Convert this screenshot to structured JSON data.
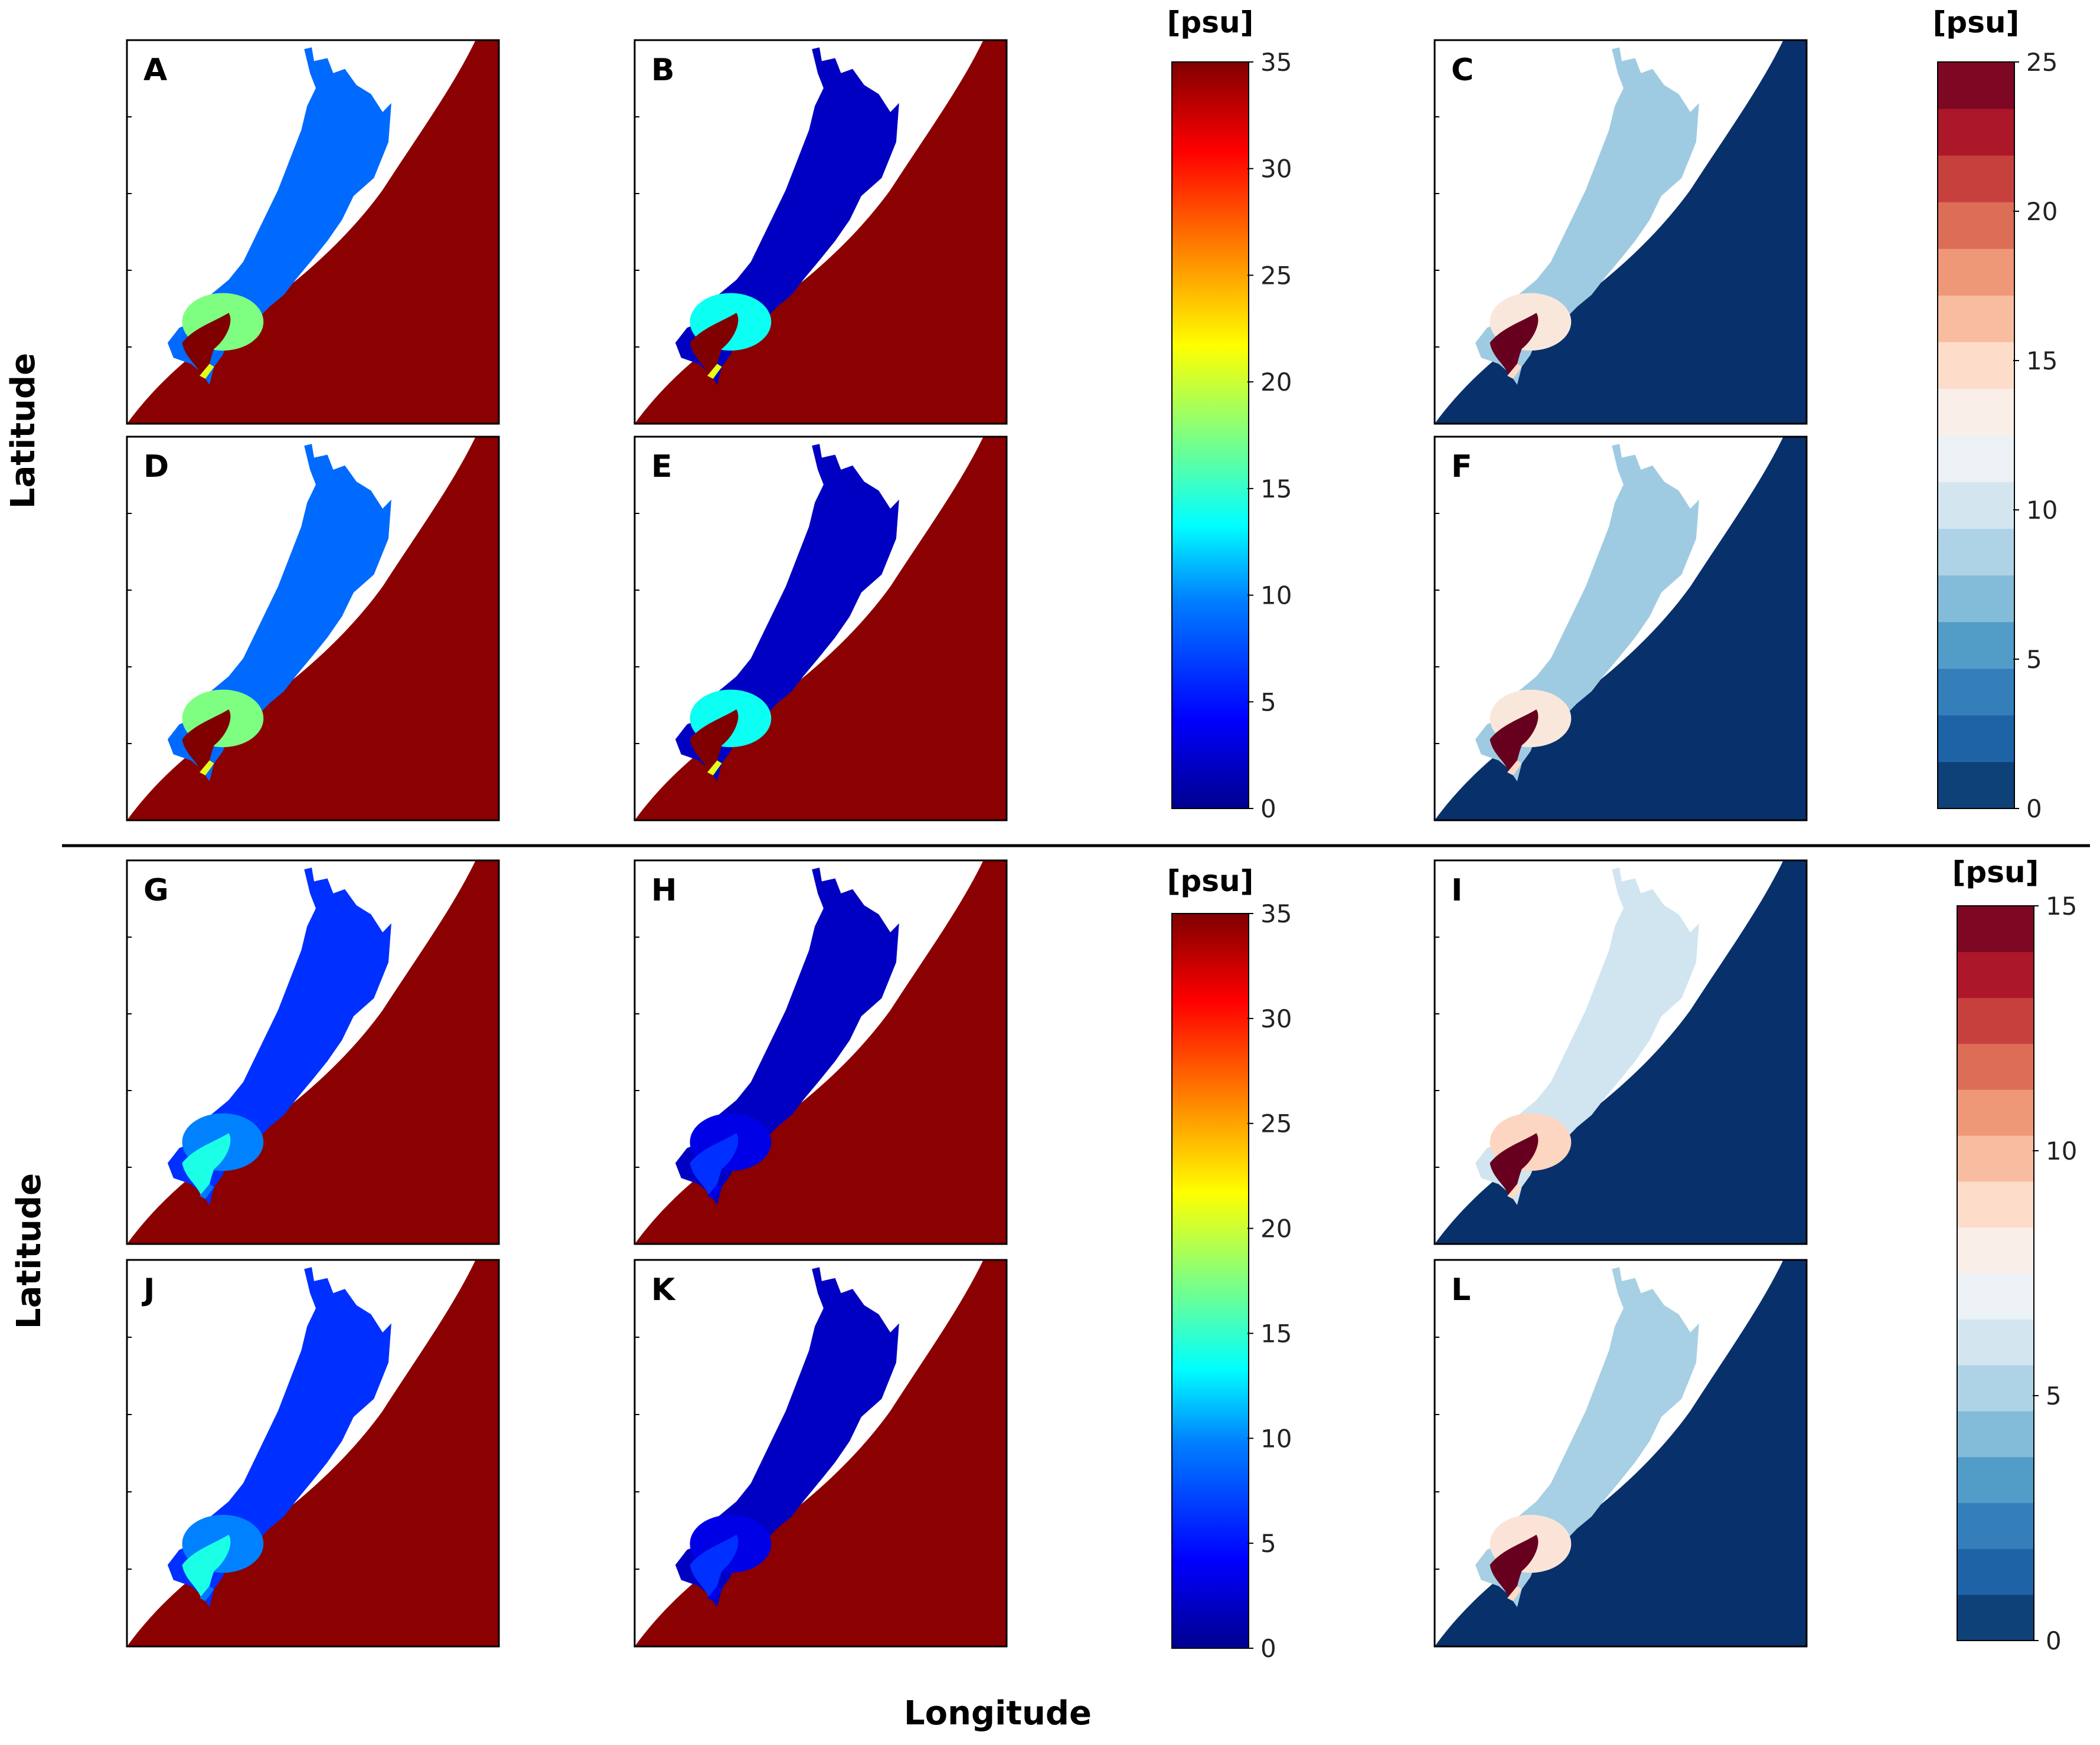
{
  "figure": {
    "xlabel": "Longitude",
    "ylabel_top": "Latitude",
    "ylabel_bottom": "Latitude"
  },
  "colors": {
    "ocean_red": "#8b0000",
    "ocean_navy": "#08306b",
    "land": "#ffffff",
    "jet": [
      "#00008f",
      "#0000ff",
      "#0080ff",
      "#00ffff",
      "#80ff80",
      "#ffff00",
      "#ff8000",
      "#ff0000",
      "#800000"
    ],
    "rdbu": [
      "#053061",
      "#2166ac",
      "#4393c3",
      "#92c5de",
      "#d1e5f0",
      "#f7f7f7",
      "#fddbc7",
      "#f4a582",
      "#d6604d",
      "#b2182b",
      "#67001f"
    ]
  },
  "colorbars": [
    {
      "unit": "[psu]",
      "ticks": [
        "0",
        "5",
        "10",
        "15",
        "20",
        "25",
        "30",
        "35"
      ]
    },
    {
      "unit": "[psu]",
      "ticks": [
        "0",
        "5",
        "10",
        "15",
        "20",
        "25"
      ]
    },
    {
      "unit": "[psu]",
      "ticks": [
        "0",
        "5",
        "10",
        "15",
        "20",
        "25",
        "30",
        "35"
      ]
    },
    {
      "unit": "[psu]",
      "ticks": [
        "0",
        "5",
        "10",
        "15"
      ]
    }
  ],
  "chart_data": [
    {
      "panel": "A",
      "type": "heatmap",
      "field": "salinity",
      "colormap": "jet",
      "range": [
        0,
        35
      ],
      "lagoon_mean": 8,
      "mouth_max": 35
    },
    {
      "panel": "B",
      "type": "heatmap",
      "field": "salinity",
      "colormap": "jet",
      "range": [
        0,
        35
      ],
      "lagoon_mean": 2,
      "mouth_max": 35
    },
    {
      "panel": "C",
      "type": "heatmap",
      "field": "salinity difference",
      "colormap": "rdbu",
      "range": [
        0,
        25
      ],
      "lagoon_mean": 8,
      "mouth_max": 25
    },
    {
      "panel": "D",
      "type": "heatmap",
      "field": "salinity",
      "colormap": "jet",
      "range": [
        0,
        35
      ],
      "lagoon_mean": 8,
      "mouth_max": 35
    },
    {
      "panel": "E",
      "type": "heatmap",
      "field": "salinity",
      "colormap": "jet",
      "range": [
        0,
        35
      ],
      "lagoon_mean": 2,
      "mouth_max": 35
    },
    {
      "panel": "F",
      "type": "heatmap",
      "field": "salinity difference",
      "colormap": "rdbu",
      "range": [
        0,
        25
      ],
      "lagoon_mean": 8,
      "mouth_max": 25
    },
    {
      "panel": "G",
      "type": "heatmap",
      "field": "salinity",
      "colormap": "jet",
      "range": [
        0,
        35
      ],
      "lagoon_mean": 6,
      "mouth_max": 14
    },
    {
      "panel": "H",
      "type": "heatmap",
      "field": "salinity",
      "colormap": "jet",
      "range": [
        0,
        35
      ],
      "lagoon_mean": 2,
      "mouth_max": 6
    },
    {
      "panel": "I",
      "type": "heatmap",
      "field": "salinity difference",
      "colormap": "rdbu",
      "range": [
        0,
        15
      ],
      "lagoon_mean": 6,
      "mouth_max": 15
    },
    {
      "panel": "J",
      "type": "heatmap",
      "field": "salinity",
      "colormap": "jet",
      "range": [
        0,
        35
      ],
      "lagoon_mean": 6,
      "mouth_max": 14
    },
    {
      "panel": "K",
      "type": "heatmap",
      "field": "salinity",
      "colormap": "jet",
      "range": [
        0,
        35
      ],
      "lagoon_mean": 2,
      "mouth_max": 6
    },
    {
      "panel": "L",
      "type": "heatmap",
      "field": "salinity difference",
      "colormap": "rdbu",
      "range": [
        0,
        15
      ],
      "lagoon_mean": 5,
      "mouth_max": 15
    }
  ]
}
